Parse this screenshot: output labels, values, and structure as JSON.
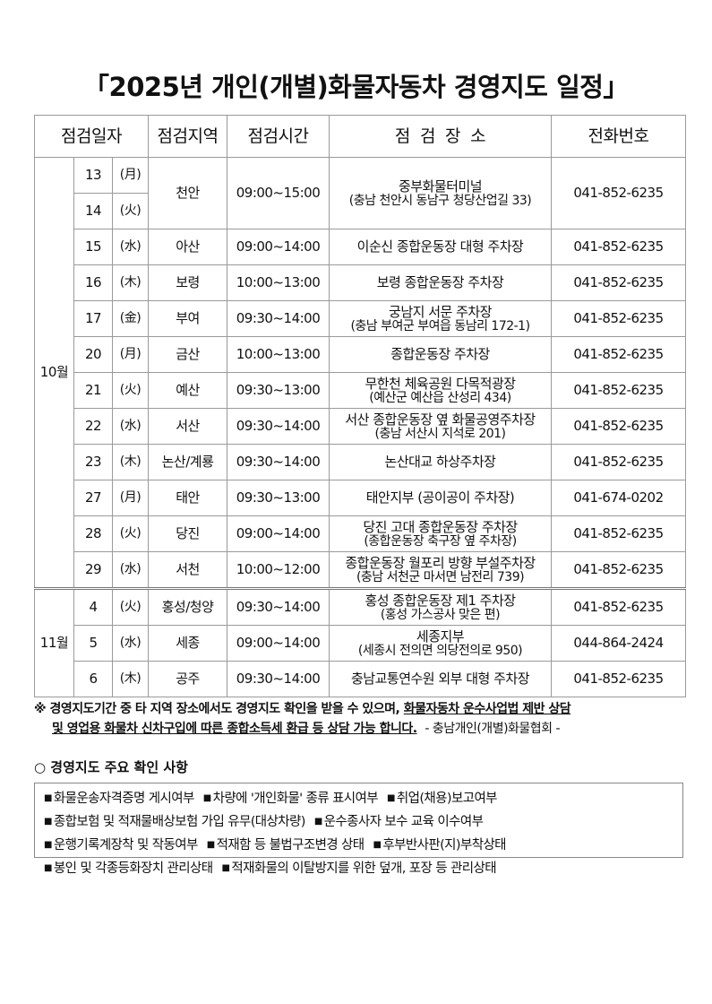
{
  "title": "「2025년 개인(개별)화물자동차 경영지도 일정」",
  "table": {
    "headers": [
      "점검일자",
      "점검지역",
      "점검시간",
      "점  검  장  소",
      "전화번호"
    ],
    "months": [
      {
        "label": "10월",
        "rows": [
          {
            "day": "13",
            "weekday": "(月)",
            "region": "천안",
            "time": "09:00~15:00",
            "place": [
              "중부화물터미널",
              "(충남 천안시 동남구 청당산업길 33)"
            ],
            "phone": "041-852-6235",
            "span": 2
          },
          {
            "day": "14",
            "weekday": "(火)"
          },
          {
            "day": "15",
            "weekday": "(水)",
            "region": "아산",
            "time": "09:00~14:00",
            "place": [
              "이순신 종합운동장 대형 주차장"
            ],
            "phone": "041-852-6235"
          },
          {
            "day": "16",
            "weekday": "(木)",
            "region": "보령",
            "time": "10:00~13:00",
            "place": [
              "보령 종합운동장 주차장"
            ],
            "phone": "041-852-6235"
          },
          {
            "day": "17",
            "weekday": "(金)",
            "region": "부여",
            "time": "09:30~14:00",
            "place": [
              "궁남지 서문 주차장",
              "(충남 부여군 부여읍 동남리 172-1)"
            ],
            "phone": "041-852-6235"
          },
          {
            "day": "20",
            "weekday": "(月)",
            "region": "금산",
            "time": "10:00~13:00",
            "place": [
              "종합운동장 주차장"
            ],
            "phone": "041-852-6235"
          },
          {
            "day": "21",
            "weekday": "(火)",
            "region": "예산",
            "time": "09:30~13:00",
            "place": [
              "무한천 체육공원 다목적광장",
              "(예산군 예산읍 산성리 434)"
            ],
            "phone": "041-852-6235"
          },
          {
            "day": "22",
            "weekday": "(水)",
            "region": "서산",
            "time": "09:30~14:00",
            "place": [
              "서산 종합운동장 옆 화물공영주차장",
              "(충남 서산시 지석로 201)"
            ],
            "phone": "041-852-6235"
          },
          {
            "day": "23",
            "weekday": "(木)",
            "region": "논산/계룡",
            "time": "09:30~14:00",
            "place": [
              "논산대교 하상주차장"
            ],
            "phone": "041-852-6235"
          },
          {
            "day": "27",
            "weekday": "(月)",
            "region": "태안",
            "time": "09:30~13:00",
            "place": [
              "태안지부 (공이공이 주차장)"
            ],
            "phone": "041-674-0202"
          },
          {
            "day": "28",
            "weekday": "(火)",
            "region": "당진",
            "time": "09:00~14:00",
            "place": [
              "당진 고대 종합운동장 주차장",
              "(종합운동장 축구장 옆 주차장)"
            ],
            "phone": "041-852-6235"
          },
          {
            "day": "29",
            "weekday": "(水)",
            "region": "서천",
            "time": "10:00~12:00",
            "place": [
              "종합운동장 월포리 방향 부설주차장",
              "(충남 서천군 마서면 남전리 739)"
            ],
            "phone": "041-852-6235"
          }
        ]
      },
      {
        "label": "11월",
        "rows": [
          {
            "day": "4",
            "weekday": "(火)",
            "region": "홍성/청양",
            "time": "09:30~14:00",
            "place": [
              "홍성 종합운동장 제1 주차장",
              "(홍성 가스공사 맞은 편)"
            ],
            "phone": "041-852-6235"
          },
          {
            "day": "5",
            "weekday": "(水)",
            "region": "세종",
            "time": "09:00~14:00",
            "place": [
              "세종지부",
              "(세종시 전의면 의당전의로 950)"
            ],
            "phone": "044-864-2424"
          },
          {
            "day": "6",
            "weekday": "(木)",
            "region": "공주",
            "time": "09:30~14:00",
            "place": [
              "충남교통연수원 외부 대형 주차장"
            ],
            "phone": "041-852-6235"
          }
        ]
      }
    ]
  },
  "note": {
    "mark": "※",
    "part1": "경영지도기간 중 타 지역 장소에서도 경영지도 확인을 받을 수 있으며,",
    "part2": "화물자동차 운수사업법 제반 상담",
    "part3": "및 영업용 화물차 신차구입에 따른 종합소득세 환급 등 상담 가능 합니다.",
    "org": "- 충남개인(개별)화물협회 -"
  },
  "section": {
    "title": "○ 경영지도 주요 확인 사항",
    "lines": [
      [
        "화물운송자격증명 게시여부",
        "차량에 '개인화물' 종류 표시여부",
        "취업(채용)보고여부"
      ],
      [
        "종합보험 및 적재물배상보험 가입 유무(대상차량)",
        "운수종사자 보수 교육 이수여부"
      ],
      [
        "운행기록계장착 및 작동여부",
        "적재함 등 불법구조변경 상태",
        "후부반사판(지)부착상태"
      ],
      [
        "봉인 및 각종등화장치 관리상태",
        "적재화물의 이탈방지를 위한 덮개, 포장 등 관리상태"
      ]
    ]
  }
}
